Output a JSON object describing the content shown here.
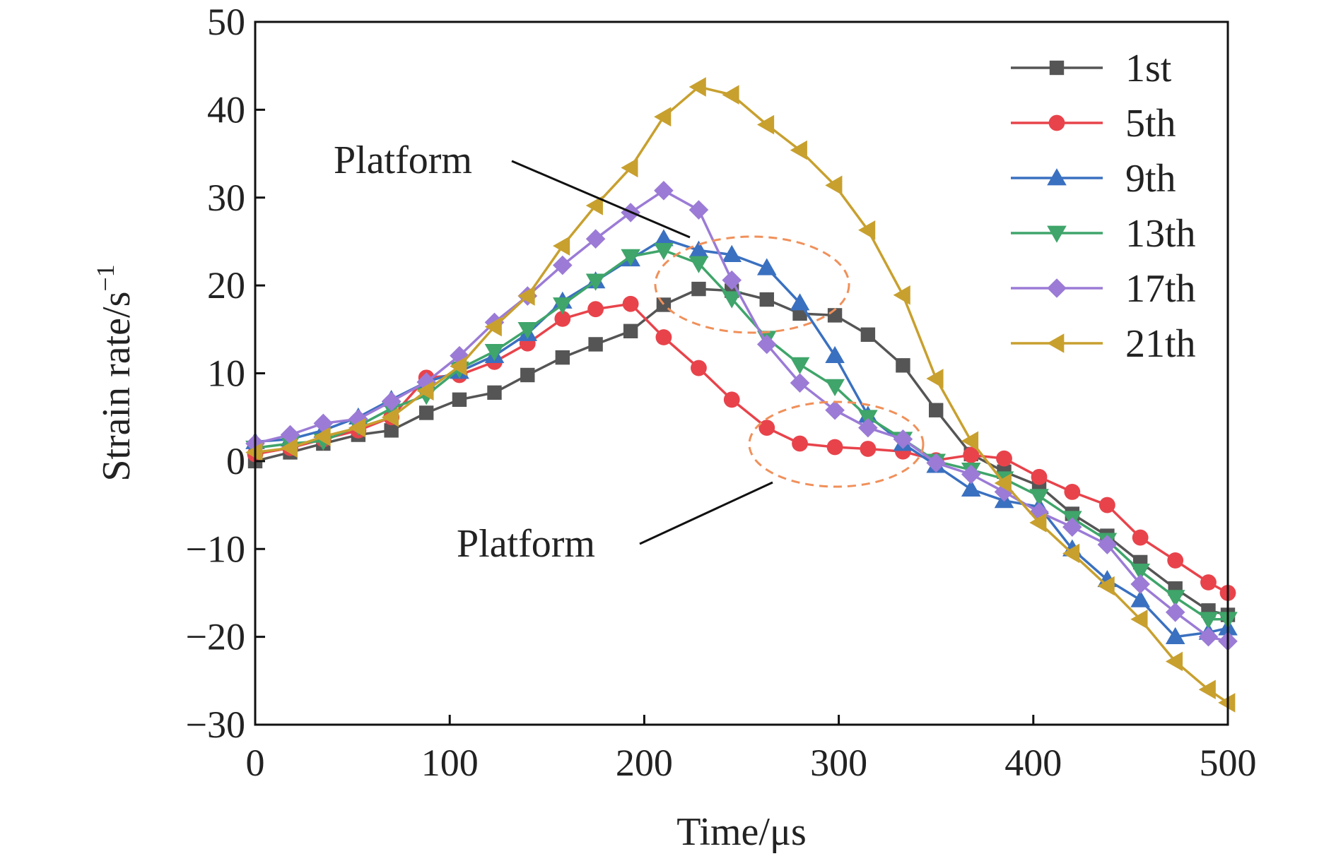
{
  "chart_data": {
    "type": "line",
    "title": "",
    "xlabel": "Time/μs",
    "ylabel": "Strain rate/s",
    "ylabel_superscript": "−1",
    "xlim": [
      0,
      500
    ],
    "ylim": [
      -30,
      50
    ],
    "xticks": [
      "0",
      "100",
      "200",
      "300",
      "400",
      "500"
    ],
    "yticks": [
      "50",
      "40",
      "30",
      "20",
      "10",
      "0",
      "−10",
      "−20",
      "−30"
    ],
    "grid": false,
    "legend_position": "top-right",
    "x": [
      0,
      18,
      35,
      53,
      70,
      88,
      105,
      123,
      140,
      158,
      175,
      193,
      210,
      228,
      245,
      263,
      280,
      298,
      315,
      333,
      350,
      368,
      385,
      403,
      420,
      438,
      455,
      473,
      490,
      500
    ],
    "series": [
      {
        "name": "1st",
        "color": "#555555",
        "marker": "square",
        "values": [
          0,
          1,
          2,
          3,
          3.5,
          5.5,
          7,
          7.8,
          9.8,
          11.8,
          13.3,
          14.8,
          17.8,
          19.6,
          19.4,
          18.4,
          16.8,
          16.6,
          14.4,
          10.9,
          5.8,
          0.8,
          -1.2,
          -2.8,
          -6,
          -8.5,
          -11.5,
          -14.5,
          -17,
          -17.5
        ]
      },
      {
        "name": "5th",
        "color": "#e8434b",
        "marker": "circle",
        "values": [
          0.8,
          1.5,
          2.5,
          3.5,
          5,
          9.5,
          9.8,
          11.3,
          13.4,
          16.2,
          17.3,
          17.9,
          14.1,
          10.6,
          7,
          3.8,
          2,
          1.6,
          1.4,
          1.1,
          0.1,
          0.7,
          0.3,
          -1.8,
          -3.5,
          -5,
          -8.7,
          -11.3,
          -13.8,
          -15
        ]
      },
      {
        "name": "9th",
        "color": "#3a70c0",
        "marker": "triangle-up",
        "values": [
          2.2,
          2.5,
          3.5,
          5,
          7,
          9,
          10.2,
          12,
          14.5,
          18.2,
          20.5,
          23,
          25.3,
          24,
          23.5,
          22,
          18,
          12,
          5.2,
          2,
          -0.5,
          -3.2,
          -4.5,
          -5.2,
          -10,
          -13.5,
          -15.8,
          -20,
          -19.5,
          -19
        ]
      },
      {
        "name": "13th",
        "color": "#3fa56a",
        "marker": "triangle-down",
        "values": [
          1.5,
          2,
          2.3,
          4,
          6,
          7.5,
          10.5,
          12.5,
          15,
          17.8,
          20.5,
          23.3,
          24,
          22.5,
          18.5,
          14,
          11,
          8.5,
          5,
          2.5,
          0,
          -1,
          -2,
          -4,
          -6.5,
          -9,
          -12.5,
          -15.5,
          -18,
          -18
        ]
      },
      {
        "name": "17th",
        "color": "#9b7bd6",
        "marker": "diamond",
        "values": [
          2,
          3,
          4.3,
          4.8,
          6.8,
          9,
          12,
          15.8,
          18.8,
          22.3,
          25.3,
          28.3,
          30.8,
          28.6,
          20.6,
          13.3,
          8.9,
          5.8,
          3.8,
          2.5,
          -0.2,
          -1.5,
          -3.5,
          -5.8,
          -7.5,
          -9.5,
          -14,
          -17.2,
          -20,
          -20.5
        ]
      },
      {
        "name": "21th",
        "color": "#c8a02e",
        "marker": "triangle-left",
        "values": [
          1,
          1.5,
          2.8,
          3.8,
          5,
          8,
          10.8,
          15.3,
          18.8,
          24.5,
          29.1,
          33.4,
          39.2,
          42.6,
          41.7,
          38.3,
          35.4,
          31.4,
          26.3,
          18.9,
          9.4,
          2.3,
          -2.5,
          -7,
          -10.5,
          -14.2,
          -18,
          -22.8,
          -26,
          -27.5
        ]
      }
    ],
    "annotations": [
      {
        "text": "Platform",
        "target": "upper-ellipse"
      },
      {
        "text": "Platform",
        "target": "lower-ellipse"
      }
    ],
    "annotation_color": "#f0905a"
  }
}
